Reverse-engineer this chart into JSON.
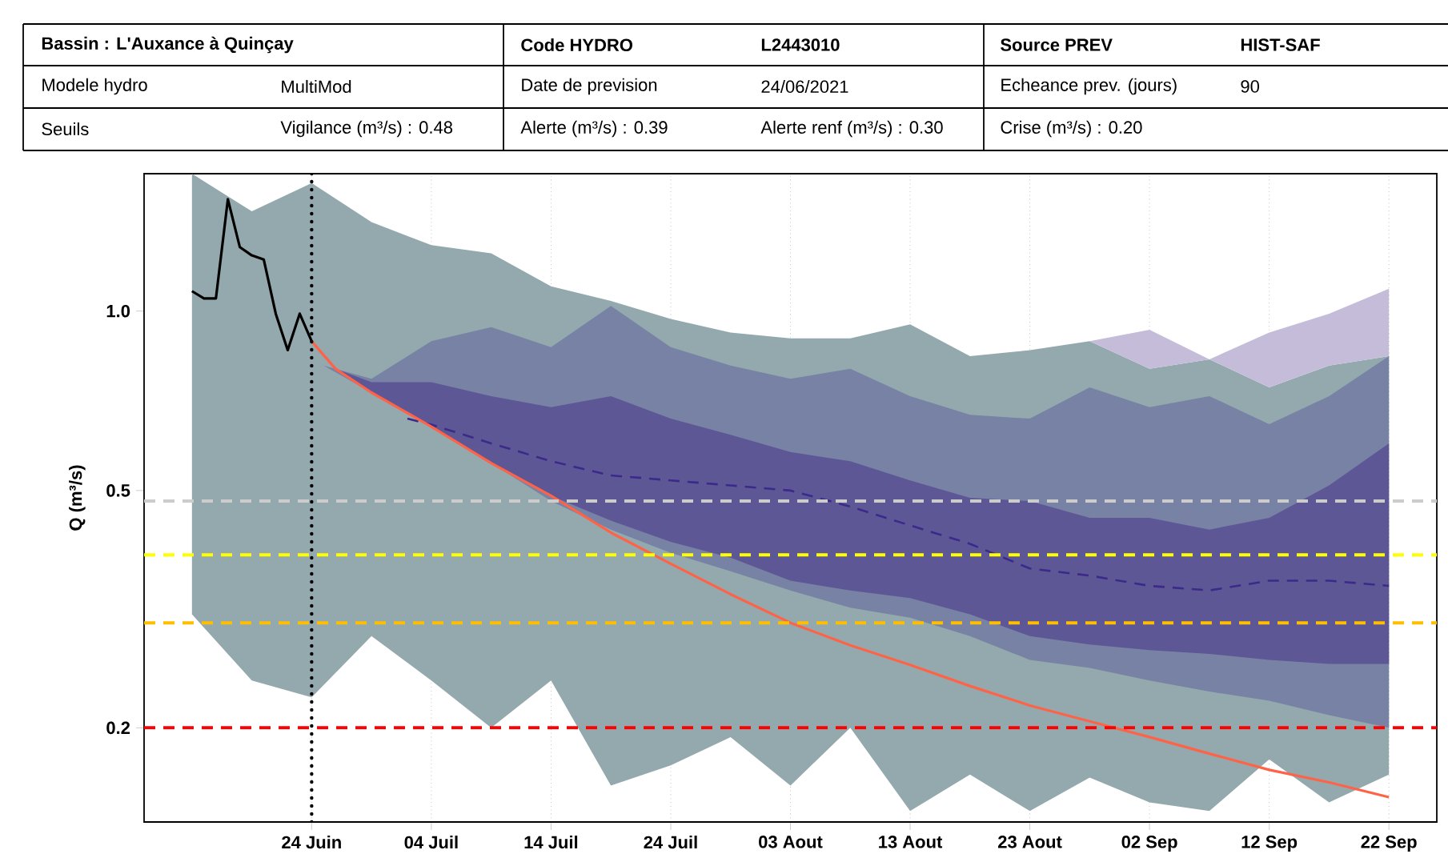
{
  "chart_data": {
    "type": "line",
    "ylabel": "Q (m³/s)",
    "annotations": [
      "Bassin : L'Auxance à Quinçay",
      "Code HYDRO",
      "L2443010",
      "Source PREV",
      "HIST-SAF",
      "Modele hydro",
      "MultiMod",
      "Date de prevision",
      "24/06/2021",
      "Echeance prev. (jours)",
      "90",
      "Seuils",
      "Vigilance (m³/s) : 0.48",
      "Alerte (m³/s) : 0.39",
      "Alerte renf (m³/s) : 0.30",
      "Crise (m³/s) : 0.20"
    ],
    "xlim": [
      "2021-06-10",
      "2021-09-26"
    ],
    "ylim": [
      0.139,
      1.7
    ],
    "log": "y",
    "grid": "x",
    "xticks": [
      {
        "value": "2021-06-24",
        "label": "24 Juin"
      },
      {
        "value": "2021-07-04",
        "label": "04 Juil"
      },
      {
        "value": "2021-07-14",
        "label": "14 Juil"
      },
      {
        "value": "2021-07-24",
        "label": "24 Juil"
      },
      {
        "value": "2021-08-03",
        "label": "03 Aout"
      },
      {
        "value": "2021-08-13",
        "label": "13 Aout"
      },
      {
        "value": "2021-08-23",
        "label": "23 Aout"
      },
      {
        "value": "2021-09-02",
        "label": "02 Sep"
      },
      {
        "value": "2021-09-12",
        "label": "12 Sep"
      },
      {
        "value": "2021-09-22",
        "label": "22 Sep"
      }
    ],
    "yticks": [
      0.2,
      0.5,
      {
        "value": 1,
        "label": "1.0"
      }
    ],
    "series": [
      {
        "color": "#93a9ad",
        "x": [
          "2021-06-14",
          "2021-06-19",
          "2021-06-24",
          "2021-06-29",
          "2021-07-04",
          "2021-07-09",
          "2021-07-14",
          "2021-07-19",
          "2021-07-24",
          "2021-07-29",
          "2021-08-03",
          "2021-08-08",
          "2021-08-13",
          "2021-08-18",
          "2021-08-23",
          "2021-08-28",
          "2021-09-02",
          "2021-09-07",
          "2021-09-12",
          "2021-09-17",
          "2021-09-22"
        ],
        "values": [
          null,
          null,
          null,
          null,
          null,
          null,
          null,
          null,
          null,
          null,
          null,
          null,
          null,
          null,
          null,
          null,
          null,
          null,
          null,
          null,
          null
        ],
        "upper": [
          1.7,
          1.47,
          1.64,
          1.41,
          1.29,
          1.25,
          1.1,
          1.04,
          0.97,
          0.92,
          0.9,
          0.9,
          0.95,
          0.84,
          0.86,
          0.89,
          0.8,
          0.83,
          0.745,
          0.81,
          0.84
        ],
        "lower": [
          0.31,
          0.24,
          0.225,
          0.285,
          0.24,
          0.2,
          0.24,
          0.16,
          0.173,
          0.193,
          0.16,
          0.2,
          0.145,
          0.167,
          0.145,
          0.165,
          0.15,
          0.145,
          0.177,
          0.15,
          0.167
        ]
      },
      {
        "color": "#7882a5",
        "x": [
          "2021-06-25",
          "2021-06-29",
          "2021-07-04",
          "2021-07-09",
          "2021-07-14",
          "2021-07-19",
          "2021-07-24",
          "2021-07-29",
          "2021-08-03",
          "2021-08-08",
          "2021-08-13",
          "2021-08-18",
          "2021-08-23",
          "2021-08-28",
          "2021-09-02",
          "2021-09-07",
          "2021-09-12",
          "2021-09-17",
          "2021-09-22"
        ],
        "values": [
          null,
          null,
          null,
          null,
          null,
          null,
          null,
          null,
          null,
          null,
          null,
          null,
          null,
          null,
          null,
          null,
          null,
          null,
          null
        ],
        "upper": [
          0.81,
          0.77,
          0.89,
          0.94,
          0.87,
          1.02,
          0.87,
          0.81,
          0.77,
          0.8,
          0.72,
          0.67,
          0.66,
          0.745,
          0.69,
          0.72,
          0.646,
          0.72,
          0.84
        ],
        "lower": [
          0.81,
          0.73,
          0.64,
          0.556,
          0.48,
          0.43,
          0.393,
          0.366,
          0.34,
          0.318,
          0.306,
          0.285,
          0.26,
          0.252,
          0.24,
          0.23,
          0.222,
          0.21,
          0.2
        ]
      },
      {
        "color": "#5e5796",
        "x": [
          "2021-06-26",
          "2021-06-29",
          "2021-07-04",
          "2021-07-09",
          "2021-07-14",
          "2021-07-19",
          "2021-07-24",
          "2021-07-29",
          "2021-08-03",
          "2021-08-08",
          "2021-08-13",
          "2021-08-18",
          "2021-08-23",
          "2021-08-28",
          "2021-09-02",
          "2021-09-07",
          "2021-09-12",
          "2021-09-17",
          "2021-09-22"
        ],
        "values": [
          null,
          null,
          null,
          null,
          null,
          null,
          null,
          null,
          null,
          null,
          null,
          null,
          null,
          null,
          null,
          null,
          null,
          null,
          null
        ],
        "upper": [
          0.8,
          0.76,
          0.76,
          0.72,
          0.69,
          0.72,
          0.66,
          0.62,
          0.58,
          0.56,
          0.52,
          0.486,
          0.48,
          0.45,
          0.45,
          0.43,
          0.45,
          0.51,
          0.6
        ],
        "lower": [
          0.8,
          0.73,
          0.64,
          0.556,
          0.49,
          0.445,
          0.41,
          0.386,
          0.353,
          0.34,
          0.33,
          0.31,
          0.285,
          0.276,
          0.27,
          0.266,
          0.26,
          0.256,
          0.256
        ]
      },
      {
        "color": "#c4bcd9",
        "x": [
          "2021-08-28",
          "2021-09-02",
          "2021-09-07",
          "2021-09-12",
          "2021-09-17",
          "2021-09-22"
        ],
        "values": [
          null,
          null,
          null,
          null,
          null,
          null
        ],
        "upper": [
          0.89,
          0.93,
          0.83,
          0.92,
          0.99,
          1.09
        ],
        "lower": [
          0.89,
          0.8,
          0.83,
          0.745,
          0.81,
          0.84
        ]
      },
      {
        "color": "#3b2a8a",
        "line_style": "dashed",
        "x": [
          "2021-07-02",
          "2021-07-04",
          "2021-07-09",
          "2021-07-14",
          "2021-07-19",
          "2021-07-24",
          "2021-07-29",
          "2021-08-03",
          "2021-08-08",
          "2021-08-13",
          "2021-08-18",
          "2021-08-23",
          "2021-08-28",
          "2021-09-02",
          "2021-09-07",
          "2021-09-12",
          "2021-09-17",
          "2021-09-22"
        ],
        "values": [
          0.66,
          0.645,
          0.6,
          0.56,
          0.53,
          0.52,
          0.51,
          0.5,
          0.47,
          0.437,
          0.407,
          0.37,
          0.36,
          0.346,
          0.34,
          0.353,
          0.353,
          0.346
        ]
      },
      {
        "color": "#ff6347",
        "x": [
          "2021-06-24",
          "2021-06-26",
          "2021-06-29",
          "2021-07-04",
          "2021-07-09",
          "2021-07-14",
          "2021-07-19",
          "2021-07-24",
          "2021-07-29",
          "2021-08-03",
          "2021-08-08",
          "2021-08-13",
          "2021-08-18",
          "2021-08-23",
          "2021-08-28",
          "2021-09-02",
          "2021-09-07",
          "2021-09-12",
          "2021-09-17",
          "2021-09-22"
        ],
        "values": [
          0.89,
          0.8,
          0.73,
          0.64,
          0.556,
          0.49,
          0.425,
          0.377,
          0.335,
          0.3,
          0.275,
          0.255,
          0.235,
          0.218,
          0.205,
          0.193,
          0.181,
          0.17,
          0.162,
          0.153
        ]
      },
      {
        "color": "#000000",
        "x": [
          "2021-06-14",
          "2021-06-15",
          "2021-06-16",
          "2021-06-17",
          "2021-06-18",
          "2021-06-19",
          "2021-06-20",
          "2021-06-21",
          "2021-06-22",
          "2021-06-23",
          "2021-06-24"
        ],
        "values": [
          1.08,
          1.05,
          1.05,
          1.54,
          1.28,
          1.24,
          1.22,
          0.99,
          0.86,
          0.99,
          0.89
        ]
      }
    ],
    "ref_lines": [
      {
        "axis": "y",
        "value": 0.48,
        "color": "#cccccc",
        "line_style": "dashed"
      },
      {
        "axis": "y",
        "value": 0.39,
        "color": "#ffff00",
        "line_style": "dashed"
      },
      {
        "axis": "y",
        "value": 0.3,
        "color": "#ffbf00",
        "line_style": "dashed"
      },
      {
        "axis": "y",
        "value": 0.2,
        "color": "#ff0000",
        "line_style": "dashed"
      },
      {
        "axis": "x",
        "value": "2021-06-24",
        "color": "#000000",
        "line_style": "dotted"
      }
    ]
  }
}
